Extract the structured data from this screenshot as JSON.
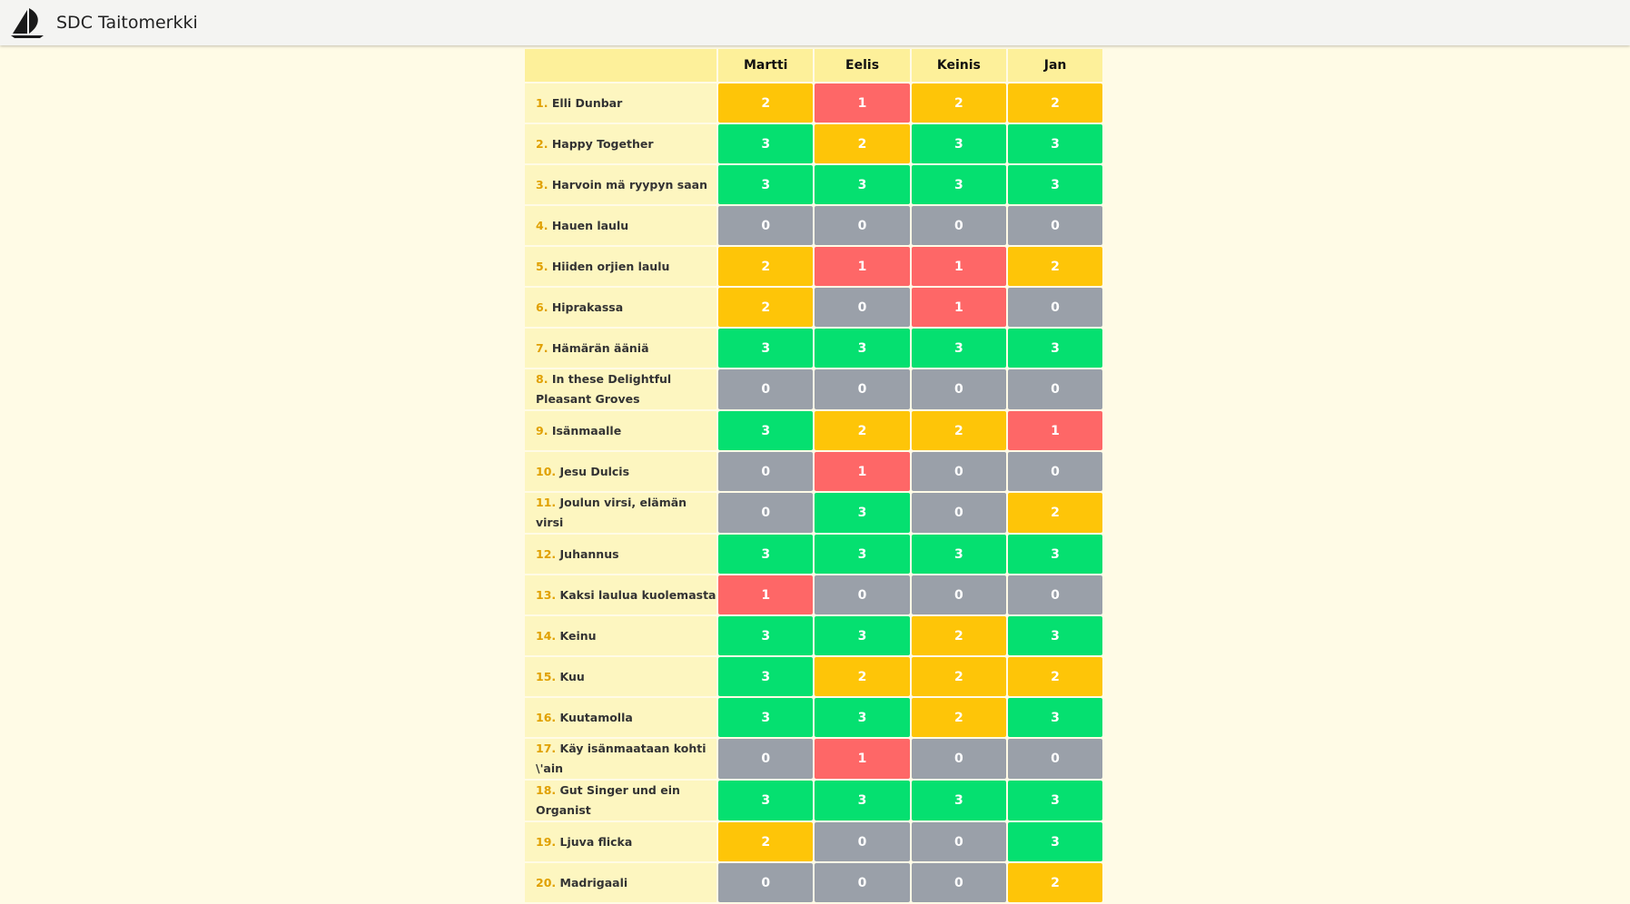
{
  "app": {
    "title": "SDC Taitomerkki",
    "logo_icon": "sailboat-logo-icon"
  },
  "table": {
    "song_header": "",
    "members": [
      "Martti",
      "Eelis",
      "Keinis",
      "Jan"
    ],
    "rows": [
      {
        "num": "1.",
        "title": "Elli Dunbar",
        "scores": [
          2,
          1,
          2,
          2
        ]
      },
      {
        "num": "2.",
        "title": "Happy Together",
        "scores": [
          3,
          2,
          3,
          3
        ]
      },
      {
        "num": "3.",
        "title": "Harvoin mä ryypyn saan",
        "scores": [
          3,
          3,
          3,
          3
        ]
      },
      {
        "num": "4.",
        "title": "Hauen laulu",
        "scores": [
          0,
          0,
          0,
          0
        ]
      },
      {
        "num": "5.",
        "title": "Hiiden orjien laulu",
        "scores": [
          2,
          1,
          1,
          2
        ]
      },
      {
        "num": "6.",
        "title": "Hiprakassa",
        "scores": [
          2,
          0,
          1,
          0
        ]
      },
      {
        "num": "7.",
        "title": "Hämärän ääniä",
        "scores": [
          3,
          3,
          3,
          3
        ]
      },
      {
        "num": "8.",
        "title": "In these Delightful Pleasant Groves",
        "scores": [
          0,
          0,
          0,
          0
        ]
      },
      {
        "num": "9.",
        "title": "Isänmaalle",
        "scores": [
          3,
          2,
          2,
          1
        ]
      },
      {
        "num": "10.",
        "title": "Jesu Dulcis",
        "scores": [
          0,
          1,
          0,
          0
        ]
      },
      {
        "num": "11.",
        "title": "Joulun virsi, elämän virsi",
        "scores": [
          0,
          3,
          0,
          2
        ]
      },
      {
        "num": "12.",
        "title": "Juhannus",
        "scores": [
          3,
          3,
          3,
          3
        ]
      },
      {
        "num": "13.",
        "title": "Kaksi laulua kuolemasta",
        "scores": [
          1,
          0,
          0,
          0
        ]
      },
      {
        "num": "14.",
        "title": "Keinu",
        "scores": [
          3,
          3,
          2,
          3
        ]
      },
      {
        "num": "15.",
        "title": "Kuu",
        "scores": [
          3,
          2,
          2,
          2
        ]
      },
      {
        "num": "16.",
        "title": "Kuutamolla",
        "scores": [
          3,
          3,
          2,
          3
        ]
      },
      {
        "num": "17.",
        "title": "Käy isänmaataan kohti \\'ain",
        "scores": [
          0,
          1,
          0,
          0
        ]
      },
      {
        "num": "18.",
        "title": "Gut Singer und ein Organist",
        "scores": [
          3,
          3,
          3,
          3
        ]
      },
      {
        "num": "19.",
        "title": "Ljuva flicka",
        "scores": [
          2,
          0,
          0,
          3
        ]
      },
      {
        "num": "20.",
        "title": "Madrigaali",
        "scores": [
          0,
          0,
          0,
          2
        ]
      }
    ]
  },
  "colors": {
    "score_0": "#9aa0a9",
    "score_1": "#fe6767",
    "score_2": "#fec508",
    "score_3": "#05e070",
    "page_background": "#fffbe6",
    "header_background": "#fdf09a",
    "song_cell_background": "#fdf6c0",
    "number_color": "#e0a000"
  }
}
